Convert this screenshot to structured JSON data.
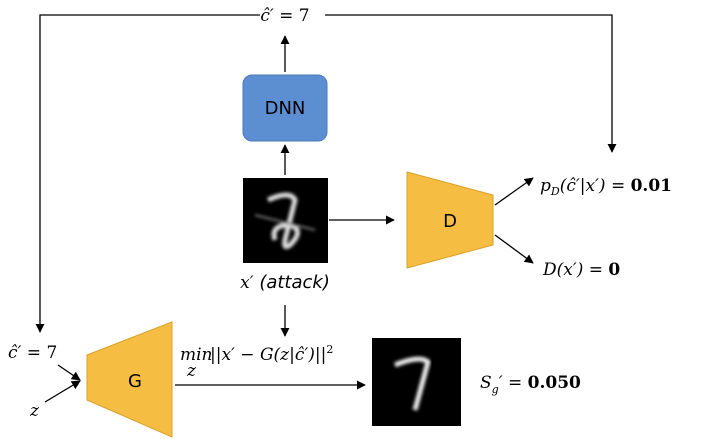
{
  "top_label": {
    "base": "ĉ′",
    "rest": " = 7"
  },
  "dnn": {
    "label": "DNN"
  },
  "input": {
    "var": "x′",
    "caption": " (attack)"
  },
  "discriminator": {
    "label": "D"
  },
  "prob_output": {
    "p": "p",
    "sub": "D",
    "args": "(ĉ′|x′) = ",
    "value": "0.01"
  },
  "d_output": {
    "base": "D(x′) = ",
    "value": "0"
  },
  "left_label": {
    "base": "ĉ′",
    "rest": " = 7"
  },
  "noise": {
    "label": "z"
  },
  "generator": {
    "label": "G"
  },
  "objective": {
    "op": "min",
    "op_sub": "z",
    "expr": " ||x′ − G(z|ĉ′)||",
    "power": "2"
  },
  "score": {
    "s": "S",
    "sub": "g",
    "rest": "′ = ",
    "value": "0.050"
  }
}
